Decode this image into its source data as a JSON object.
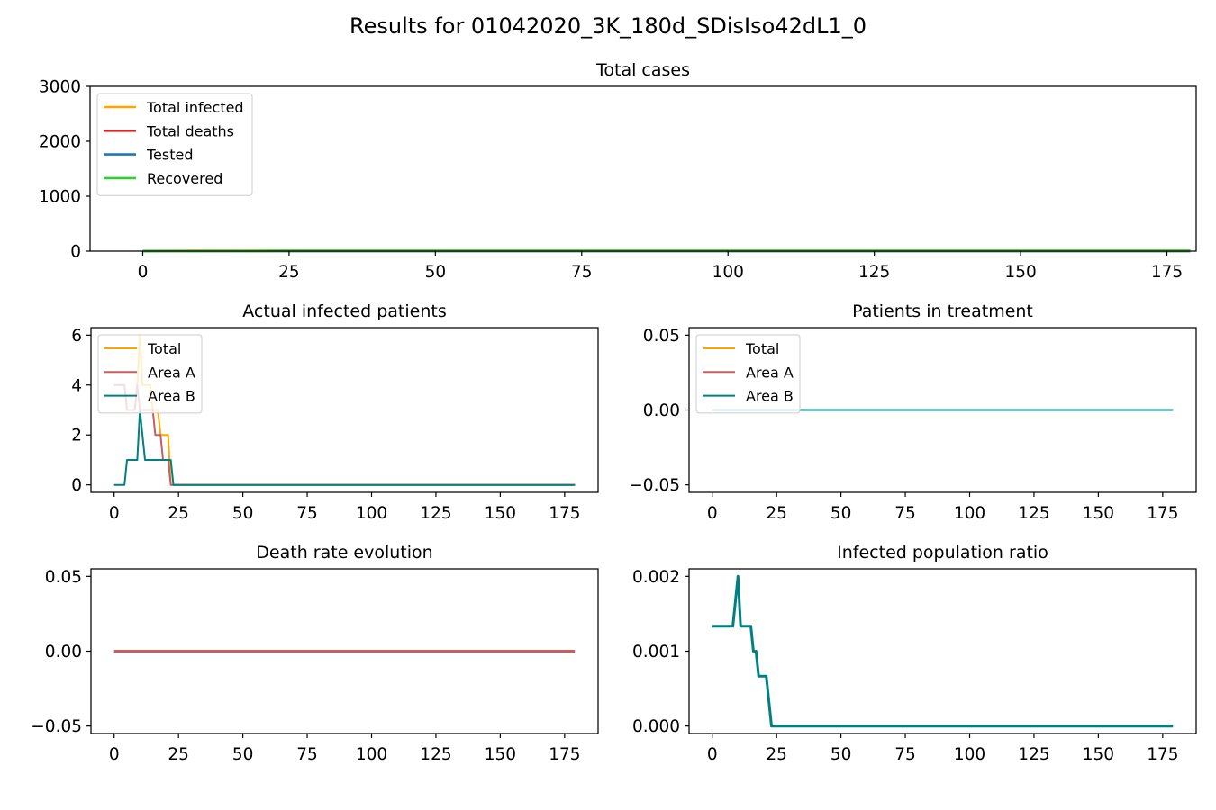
{
  "figure": {
    "title": "Results for 01042020_3K_180d_SDisIso42dL1_0"
  },
  "colors": {
    "orange": "#FFA500",
    "red": "#D62728",
    "blue": "#1F77B4",
    "green": "#32CD32",
    "indianred": "#CD5C5C",
    "teal": "#008080"
  },
  "chart_data": [
    {
      "id": "total-cases",
      "type": "line",
      "title": "Total cases",
      "xlabel": "",
      "ylabel": "",
      "xlim": [
        -9,
        180
      ],
      "ylim": [
        0,
        3000
      ],
      "xticks": [
        0,
        25,
        50,
        75,
        100,
        125,
        150,
        175
      ],
      "yticks": [
        0,
        1000,
        2000,
        3000
      ],
      "ytick_labels": [
        "0",
        "1000",
        "2000",
        "3000"
      ],
      "legend": "top-left",
      "grid": false,
      "series": [
        {
          "name": "Total infected",
          "color": "#FFA500",
          "width": 2.6,
          "points": [
            [
              0,
              4
            ],
            [
              10,
              6
            ],
            [
              23,
              6
            ],
            [
              179,
              6
            ]
          ]
        },
        {
          "name": "Total deaths",
          "color": "#D62728",
          "width": 2.6,
          "points": [
            [
              0,
              0
            ],
            [
              179,
              0
            ]
          ]
        },
        {
          "name": "Tested",
          "color": "#1F77B4",
          "width": 2.6,
          "points": [
            [
              0,
              0
            ],
            [
              179,
              0
            ]
          ]
        },
        {
          "name": "Recovered",
          "color": "#32CD32",
          "width": 2.6,
          "points": [
            [
              0,
              0
            ],
            [
              5,
              0
            ],
            [
              15,
              2
            ],
            [
              23,
              6
            ],
            [
              179,
              6
            ]
          ]
        }
      ]
    },
    {
      "id": "actual-infected",
      "type": "line",
      "title": "Actual infected patients",
      "xlabel": "",
      "ylabel": "",
      "xlim": [
        -9,
        188
      ],
      "ylim": [
        -0.3,
        6.3
      ],
      "xticks": [
        0,
        25,
        50,
        75,
        100,
        125,
        150,
        175
      ],
      "yticks": [
        0,
        2,
        4,
        6
      ],
      "ytick_labels": [
        "0",
        "2",
        "4",
        "6"
      ],
      "legend": "top-left",
      "grid": false,
      "series": [
        {
          "name": "Total",
          "color": "#FFA500",
          "width": 2,
          "points": [
            [
              0,
              4
            ],
            [
              4,
              4
            ],
            [
              5,
              3
            ],
            [
              8,
              3
            ],
            [
              9,
              4
            ],
            [
              10,
              6
            ],
            [
              11,
              4
            ],
            [
              14,
              4
            ],
            [
              15,
              3
            ],
            [
              17,
              3
            ],
            [
              18,
              2
            ],
            [
              21,
              2
            ],
            [
              22,
              0
            ],
            [
              179,
              0
            ]
          ]
        },
        {
          "name": "Area A",
          "color": "#CD5C5C",
          "width": 2,
          "points": [
            [
              0,
              4
            ],
            [
              4,
              4
            ],
            [
              5,
              3
            ],
            [
              8,
              3
            ],
            [
              9,
              4
            ],
            [
              10,
              3
            ],
            [
              15,
              3
            ],
            [
              16,
              2
            ],
            [
              18,
              2
            ],
            [
              19,
              1
            ],
            [
              21,
              1
            ],
            [
              22,
              0
            ],
            [
              179,
              0
            ]
          ]
        },
        {
          "name": "Area B",
          "color": "#008080",
          "width": 2,
          "points": [
            [
              0,
              0
            ],
            [
              4,
              0
            ],
            [
              5,
              1
            ],
            [
              9,
              1
            ],
            [
              10,
              3
            ],
            [
              12,
              1
            ],
            [
              22,
              1
            ],
            [
              23,
              0
            ],
            [
              179,
              0
            ]
          ]
        }
      ]
    },
    {
      "id": "patients-treatment",
      "type": "line",
      "title": "Patients in treatment",
      "xlabel": "",
      "ylabel": "",
      "xlim": [
        -9,
        188
      ],
      "ylim": [
        -0.055,
        0.055
      ],
      "xticks": [
        0,
        25,
        50,
        75,
        100,
        125,
        150,
        175
      ],
      "yticks": [
        -0.05,
        0,
        0.05
      ],
      "ytick_labels": [
        "−0.05",
        "0.00",
        "0.05"
      ],
      "legend": "top-left",
      "grid": false,
      "series": [
        {
          "name": "Total",
          "color": "#FFA500",
          "width": 2,
          "points": [
            [
              0,
              0
            ],
            [
              179,
              0
            ]
          ]
        },
        {
          "name": "Area A",
          "color": "#CD5C5C",
          "width": 2,
          "points": [
            [
              0,
              0
            ],
            [
              179,
              0
            ]
          ]
        },
        {
          "name": "Area B",
          "color": "#008080",
          "width": 2,
          "points": [
            [
              0,
              0
            ],
            [
              179,
              0
            ]
          ]
        }
      ]
    },
    {
      "id": "death-rate",
      "type": "line",
      "title": "Death rate evolution",
      "xlabel": "",
      "ylabel": "",
      "xlim": [
        -9,
        188
      ],
      "ylim": [
        -0.055,
        0.055
      ],
      "xticks": [
        0,
        25,
        50,
        75,
        100,
        125,
        150,
        175
      ],
      "yticks": [
        -0.05,
        0,
        0.05
      ],
      "ytick_labels": [
        "−0.05",
        "0.00",
        "0.05"
      ],
      "legend": "none",
      "grid": false,
      "series": [
        {
          "color": "#CD5C5C",
          "width": 3,
          "points": [
            [
              0,
              0
            ],
            [
              179,
              0
            ]
          ]
        }
      ]
    },
    {
      "id": "infected-ratio",
      "type": "line",
      "title": "Infected population ratio",
      "xlabel": "",
      "ylabel": "",
      "xlim": [
        -9,
        188
      ],
      "ylim": [
        -0.0001,
        0.0021
      ],
      "xticks": [
        0,
        25,
        50,
        75,
        100,
        125,
        150,
        175
      ],
      "yticks": [
        0,
        0.001,
        0.002
      ],
      "ytick_labels": [
        "0.000",
        "0.001",
        "0.002"
      ],
      "legend": "none",
      "grid": false,
      "series": [
        {
          "color": "#008080",
          "width": 3,
          "points": [
            [
              0,
              0.001333
            ],
            [
              8,
              0.001333
            ],
            [
              10,
              0.002
            ],
            [
              11,
              0.001333
            ],
            [
              15,
              0.001333
            ],
            [
              16,
              0.001
            ],
            [
              17,
              0.001
            ],
            [
              18,
              0.000667
            ],
            [
              21,
              0.000667
            ],
            [
              23,
              0
            ],
            [
              179,
              0
            ]
          ]
        }
      ]
    }
  ]
}
